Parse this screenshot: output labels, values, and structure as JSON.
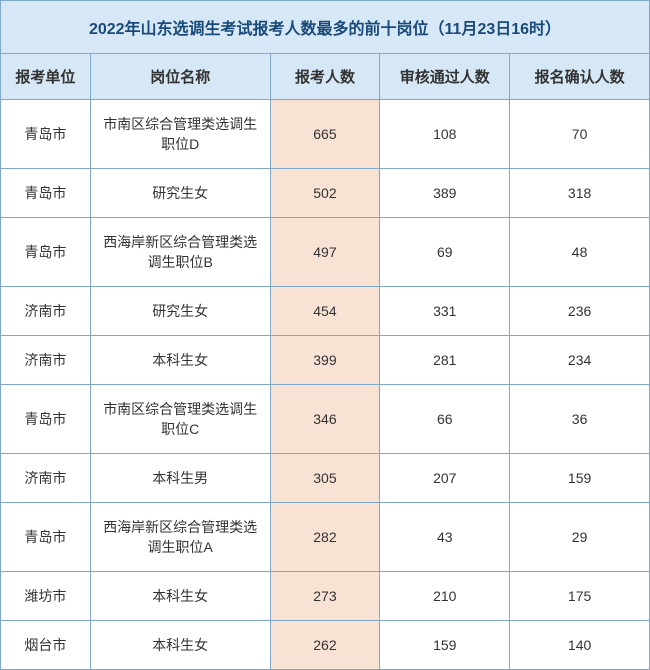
{
  "title": "2022年山东选调生考试报考人数最多的前十岗位（11月23日16时）",
  "columns": {
    "unit": "报考单位",
    "position": "岗位名称",
    "applicants": "报考人数",
    "approved": "审核通过人数",
    "confirmed": "报名确认人数"
  },
  "rows": [
    {
      "unit": "青岛市",
      "position": "市南区综合管理类选调生职位D",
      "applicants": "665",
      "approved": "108",
      "confirmed": "70"
    },
    {
      "unit": "青岛市",
      "position": "研究生女",
      "applicants": "502",
      "approved": "389",
      "confirmed": "318"
    },
    {
      "unit": "青岛市",
      "position": "西海岸新区综合管理类选调生职位B",
      "applicants": "497",
      "approved": "69",
      "confirmed": "48"
    },
    {
      "unit": "济南市",
      "position": "研究生女",
      "applicants": "454",
      "approved": "331",
      "confirmed": "236"
    },
    {
      "unit": "济南市",
      "position": "本科生女",
      "applicants": "399",
      "approved": "281",
      "confirmed": "234"
    },
    {
      "unit": "青岛市",
      "position": "市南区综合管理类选调生职位C",
      "applicants": "346",
      "approved": "66",
      "confirmed": "36"
    },
    {
      "unit": "济南市",
      "position": "本科生男",
      "applicants": "305",
      "approved": "207",
      "confirmed": "159"
    },
    {
      "unit": "青岛市",
      "position": "西海岸新区综合管理类选调生职位A",
      "applicants": "282",
      "approved": "43",
      "confirmed": "29"
    },
    {
      "unit": "潍坊市",
      "position": "本科生女",
      "applicants": "273",
      "approved": "210",
      "confirmed": "175"
    },
    {
      "unit": "烟台市",
      "position": "本科生女",
      "applicants": "262",
      "approved": "159",
      "confirmed": "140"
    }
  ],
  "colors": {
    "header_bg": "#d6e8f5",
    "highlight_bg": "#f8e2d4",
    "border": "#7fa8c9",
    "title_text": "#1a4a7a",
    "cell_text": "#333333",
    "cell_bg": "#ffffff"
  }
}
